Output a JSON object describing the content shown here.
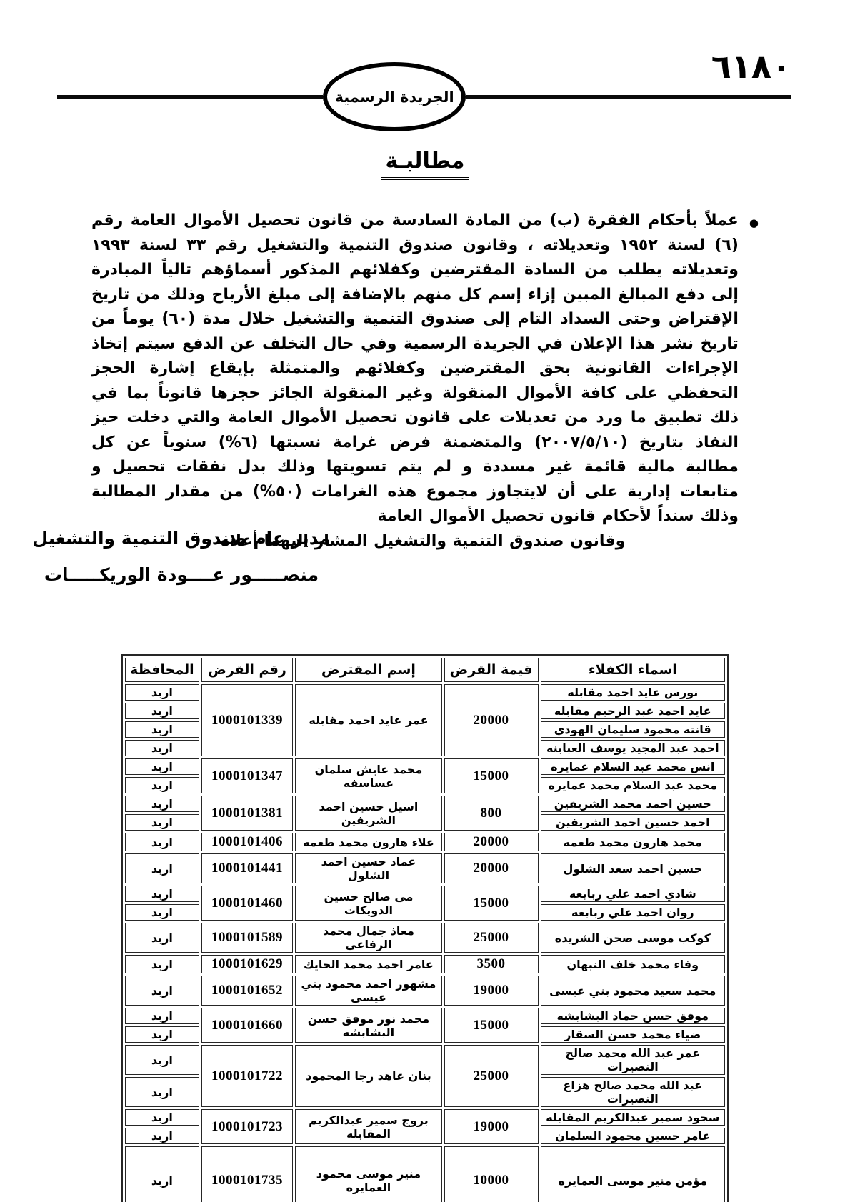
{
  "header": {
    "page_number": "٦١٨٠",
    "gazette_label": "الجريدة الرسمية"
  },
  "title": {
    "text": "مطالبـة"
  },
  "notice": {
    "bullet": "●",
    "body": "عملاً بأحكام الفقرة (ب) من المادة السادسة من قانون تحصيل الأموال العامة رقم (٦) لسنة ١٩٥٢ وتعديلاته ، وقانون صندوق التنمية والتشغيل رقم ٣٣ لسنة ١٩٩٣ وتعديلاته يطلب من السادة المقترضين وكفلائهم المذكور أسماؤهم تالياً المبادرة إلى دفع المبالغ المبين إزاء إسم كل منهم بالإضافة إلى مبلغ الأرباح وذلك من تاريخ الإقتراض وحتى السداد التام إلى صندوق التنمية والتشغيل خلال مدة (٦٠) يوماً من تاريخ نشر هذا الإعلان في الجريدة الرسمية وفي حال التخلف عن الدفع سيتم إتخاذ الإجراءات القانونية بحق المقترضين وكفلائهم والمتمثلة بإيقاع إشارة الحجز التحفظي على كافة الأموال المنقولة وغير المنقولة الجائز حجزها قانوناً بما في ذلك تطبيق ما ورد من تعديلات على قانون تحصيل الأموال العامة والتي دخلت حيز النفاذ بتاريخ (٢٠٠٧/٥/١٠) والمتضمنة فرض غرامة نسبتها (٦%) سنوياً عن كل مطالبة مالية قائمة غير مسددة و لم يتم تسويتها وذلك بدل نفقات تحصيل و متابعات إدارية على أن لايتجاوز مجموع هذه الغرامات (٥٠%) من مقدار المطالبة وذلك سنداً لأحكام قانون تحصيل الأموال العامة",
    "closing": "وقانون صندوق التنمية والتشغيل المشار اليهما أعلاه ٠"
  },
  "signature": {
    "role": "مدير عام صندوق التنمية والتشغيل",
    "name": "منصـــــور عــــودة الوريكـــــات"
  },
  "table": {
    "headers": [
      "اسماء الكفلاء",
      "قيمة القرض",
      "إسم المقترض",
      "رقم القرض",
      "المحافظة"
    ],
    "groups": [
      {
        "loan_no": "1000101339",
        "borrower": "عمر عايد احمد مقابله",
        "amount": "20000",
        "governorate": "اربد",
        "guarantors": [
          "نورس عايد احمد مقابله",
          "عايد احمد عبد الرحيم مقابله",
          "قانته محمود سليمان الهودي",
          "احمد عبد المجيد يوسف العبابنه"
        ]
      },
      {
        "loan_no": "1000101347",
        "borrower": "محمد عايش سلمان عساسفه",
        "amount": "15000",
        "governorate": "اربد",
        "guarantors": [
          "انس محمد عبد السلام عمايره",
          "محمد عبد السلام محمد عمايره"
        ]
      },
      {
        "loan_no": "1000101381",
        "borrower": "اسيل حسين احمد الشريفين",
        "amount": "800",
        "governorate": "اربد",
        "guarantors": [
          "حسين احمد محمد الشريفين",
          "احمد حسين احمد الشريفين"
        ]
      },
      {
        "loan_no": "1000101406",
        "borrower": "علاء هارون محمد طعمه",
        "amount": "20000",
        "governorate": "اربد",
        "guarantors": [
          "محمد هارون محمد طعمه"
        ]
      },
      {
        "loan_no": "1000101441",
        "borrower": "عماد حسين احمد الشلول",
        "amount": "20000",
        "governorate": "اربد",
        "guarantors": [
          "حسين احمد سعد الشلول"
        ]
      },
      {
        "loan_no": "1000101460",
        "borrower": "مي صالح حسين الدويكات",
        "amount": "15000",
        "governorate": "اربد",
        "guarantors": [
          "شادي احمد علي ربابعه",
          "روان احمد علي ربابعه"
        ]
      },
      {
        "loan_no": "1000101589",
        "borrower": "معاذ جمال محمد الرفاعي",
        "amount": "25000",
        "governorate": "اربد",
        "guarantors": [
          "كوكب موسى صحن الشريده"
        ]
      },
      {
        "loan_no": "1000101629",
        "borrower": "عامر احمد محمد الحايك",
        "amount": "3500",
        "governorate": "اربد",
        "guarantors": [
          "وفاء محمد خلف النبهان"
        ]
      },
      {
        "loan_no": "1000101652",
        "borrower": "مشهور احمد محمود بني عيسى",
        "amount": "19000",
        "governorate": "اربد",
        "guarantors": [
          "محمد سعيد محمود بني عيسى"
        ]
      },
      {
        "loan_no": "1000101660",
        "borrower": "محمد نور موفق حسن البشابشه",
        "amount": "15000",
        "governorate": "اربد",
        "guarantors": [
          "موفق حسن حماد البشابشه",
          "ضياء محمد حسن السقار"
        ]
      },
      {
        "loan_no": "1000101722",
        "borrower": "بنان عاهد رجا المحمود",
        "amount": "25000",
        "governorate": "اربد",
        "guarantors": [
          "عمر عبد الله محمد صالح النصيرات",
          "عبد الله محمد صالح هزاع النصيرات"
        ]
      },
      {
        "loan_no": "1000101723",
        "borrower": "بروج سمير عبدالكريم المقابله",
        "amount": "19000",
        "governorate": "اربد",
        "guarantors": [
          "سجود سمير عبدالكريم المقابله",
          "عامر حسين محمود السلمان"
        ]
      },
      {
        "loan_no": "1000101735",
        "borrower": "منير موسى محمود العمايره",
        "amount": "10000",
        "governorate": "اربد",
        "tall": true,
        "guarantors": [
          "مؤمن منير موسى العمايره"
        ]
      }
    ]
  }
}
